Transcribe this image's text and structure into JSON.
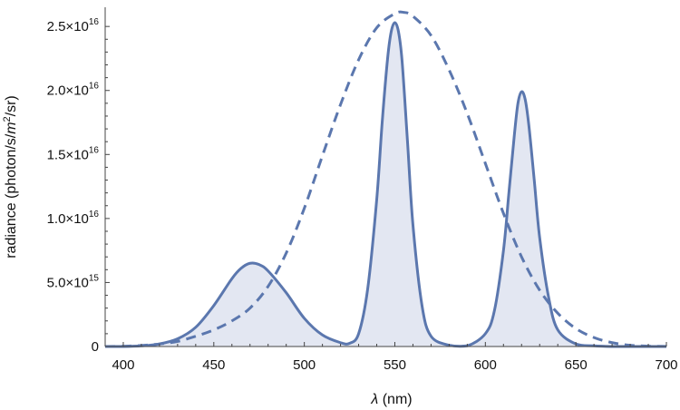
{
  "chart_data": {
    "type": "area",
    "title": "",
    "xlabel": {
      "symbol": "λ",
      "unit": " (nm)"
    },
    "ylabel": {
      "prefix": "radiance (photon/s/",
      "unit_m": "m",
      "exp": "2",
      "suffix": "/sr)"
    },
    "xlim": [
      390,
      700
    ],
    "ylim": [
      0,
      2.65e+16
    ],
    "x_ticks": [
      400,
      450,
      500,
      550,
      600,
      650,
      700
    ],
    "x_tick_labels": [
      "400",
      "450",
      "500",
      "550",
      "600",
      "650",
      "700"
    ],
    "y_ticks": [
      {
        "value": 0,
        "mant": "0",
        "exp": ""
      },
      {
        "value": 5000000000000000.0,
        "mant": "5.0",
        "exp": "15"
      },
      {
        "value": 1e+16,
        "mant": "1.0",
        "exp": "16"
      },
      {
        "value": 1.5e+16,
        "mant": "1.5",
        "exp": "16"
      },
      {
        "value": 2e+16,
        "mant": "2.0",
        "exp": "16"
      },
      {
        "value": 2.5e+16,
        "mant": "2.5",
        "exp": "16"
      }
    ],
    "times_sign": "×10",
    "series": [
      {
        "style": "solid-filled",
        "x": [
          390,
          400,
          410,
          420,
          430,
          440,
          450,
          460,
          465,
          470,
          475,
          480,
          490,
          500,
          510,
          520,
          525,
          530,
          535,
          540,
          543,
          546,
          548,
          550,
          552,
          554,
          557,
          560,
          565,
          570,
          580,
          590,
          600,
          605,
          610,
          613,
          616,
          618,
          620,
          622,
          624,
          627,
          630,
          635,
          640,
          650,
          660,
          670,
          680,
          690,
          700
        ],
        "y": [
          0,
          0,
          50000000000000.0,
          200000000000000.0,
          600000000000000.0,
          1500000000000000.0,
          3200000000000000.0,
          5300000000000000.0,
          6100000000000000.0,
          6500000000000000.0,
          6400000000000000.0,
          5900000000000000.0,
          4200000000000000.0,
          2200000000000000.0,
          900000000000000.0,
          300000000000000.0,
          250000000000000.0,
          1000000000000000.0,
          4500000000000000.0,
          1.15e+16,
          1.75e+16,
          2.25e+16,
          2.46e+16,
          2.53e+16,
          2.46e+16,
          2.23e+16,
          1.6e+16,
          9500000000000000.0,
          3200000000000000.0,
          800000000000000.0,
          100000000000000.0,
          50000000000000.0,
          1000000000000000.0,
          2800000000000000.0,
          7500000000000000.0,
          1.2e+16,
          1.65e+16,
          1.9e+16,
          1.99e+16,
          1.93e+16,
          1.73e+16,
          1.3e+16,
          8500000000000000.0,
          3800000000000000.0,
          1300000000000000.0,
          200000000000000.0,
          50000000000000.0,
          0,
          0,
          0,
          0
        ]
      },
      {
        "style": "dashed",
        "x": [
          390,
          400,
          410,
          420,
          430,
          440,
          450,
          460,
          470,
          480,
          490,
          500,
          510,
          520,
          530,
          540,
          550,
          555,
          560,
          570,
          580,
          590,
          600,
          610,
          620,
          630,
          640,
          650,
          660,
          670,
          680,
          690,
          700
        ],
        "y": [
          0,
          20000000000000.0,
          80000000000000.0,
          200000000000000.0,
          400000000000000.0,
          800000000000000.0,
          1300000000000000.0,
          2000000000000000.0,
          3000000000000000.0,
          4700000000000000.0,
          7300000000000000.0,
          1.08e+16,
          1.49e+16,
          1.89e+16,
          2.24e+16,
          2.49e+16,
          2.6e+16,
          2.61e+16,
          2.58e+16,
          2.43e+16,
          2.16e+16,
          1.82e+16,
          1.43e+16,
          1.04e+16,
          7000000000000000.0,
          4400000000000000.0,
          2600000000000000.0,
          1400000000000000.0,
          700000000000000.0,
          300000000000000.0,
          100000000000000.0,
          30000000000000.0,
          10000000000000.0
        ]
      }
    ],
    "colors": {
      "line": "#5b77ae",
      "fill": "#e3e7f2",
      "axis": "#444444"
    },
    "grid": false
  }
}
